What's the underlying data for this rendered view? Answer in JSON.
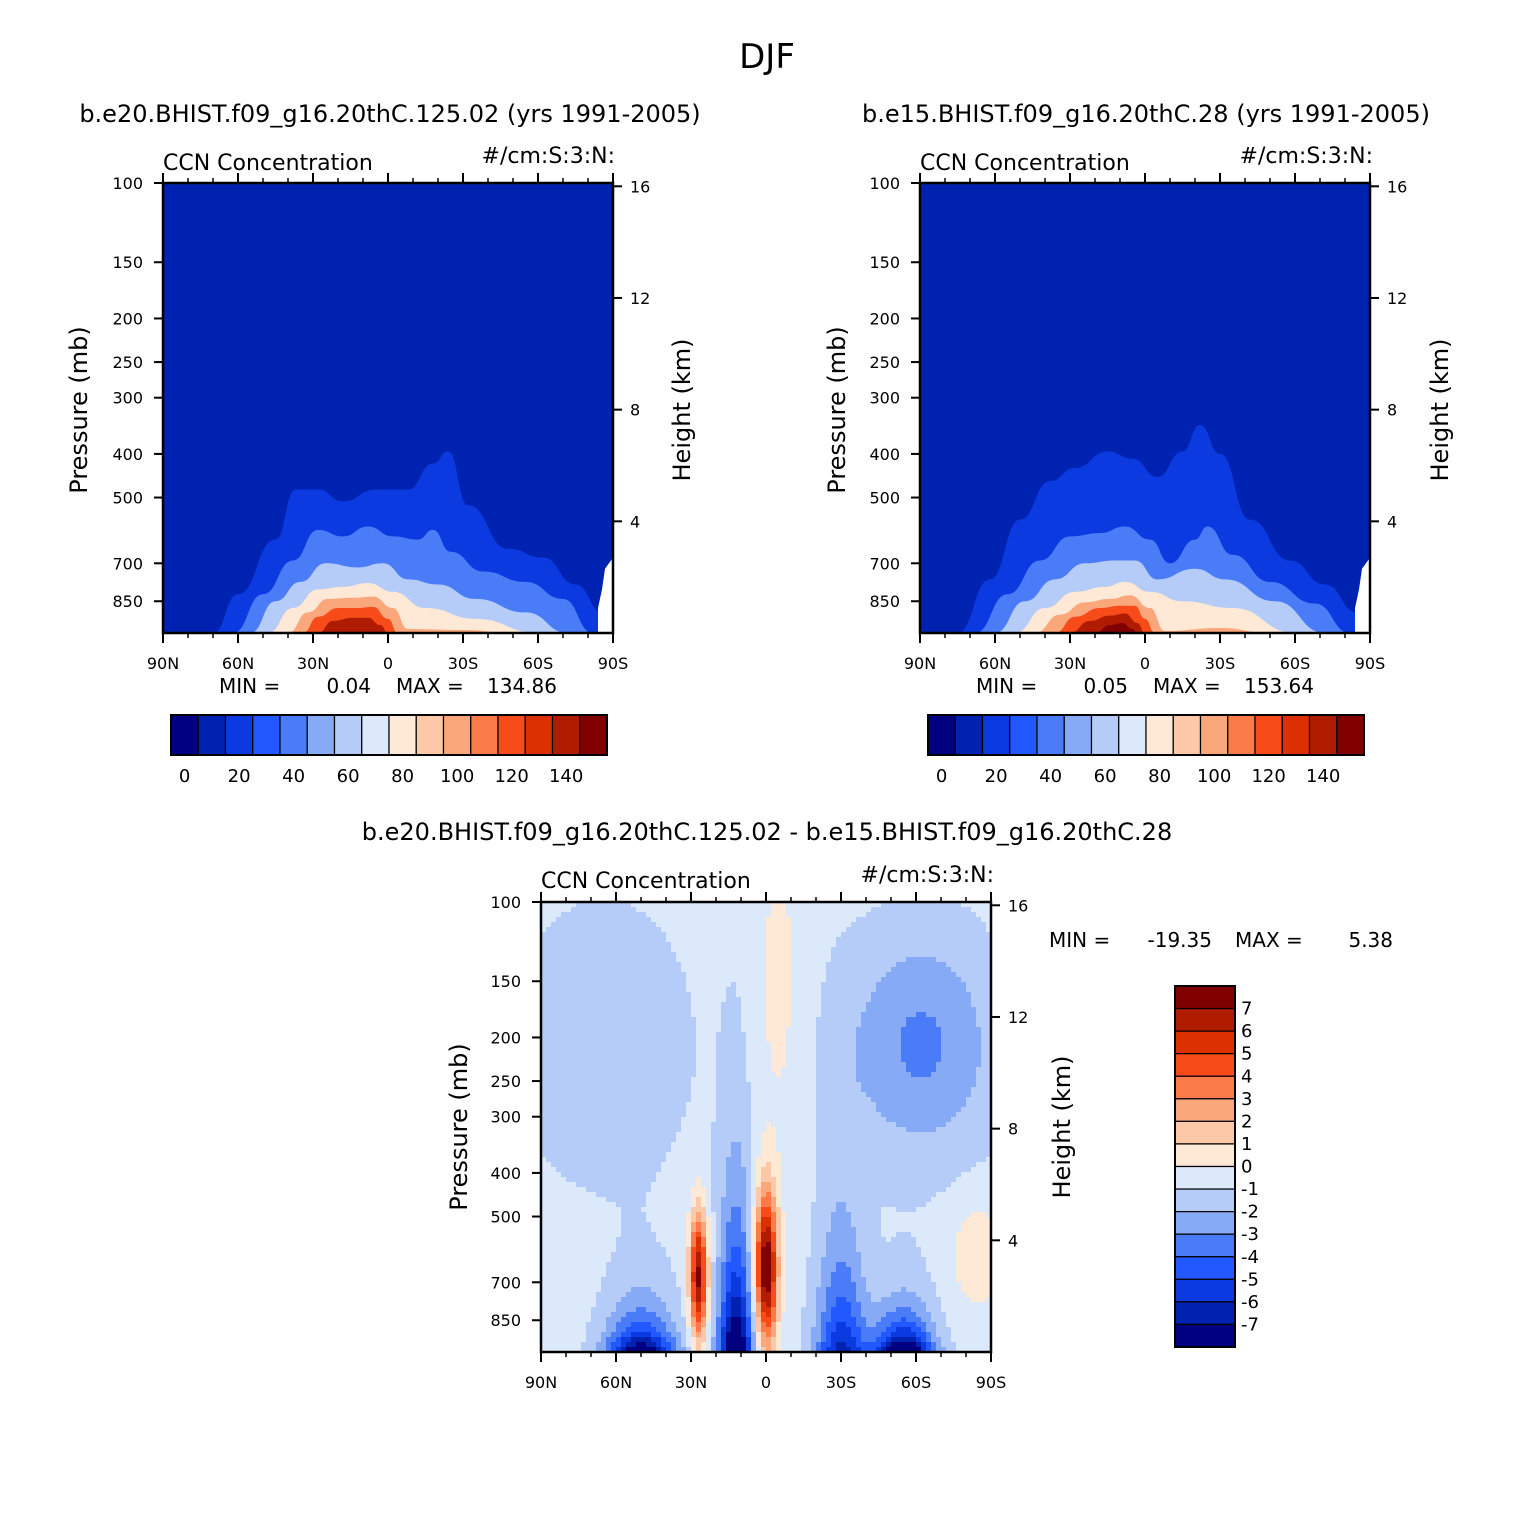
{
  "figure": {
    "title": "DJF",
    "panels": [
      {
        "id": "case",
        "subtitle": "b.e20.BHIST.f09_g16.20thC.125.02 (yrs 1991-2005)",
        "left_label": "CCN Concentration",
        "right_label": "#/cm:S:3:N:",
        "stats": {
          "min_label": "MIN =",
          "min": "0.04",
          "max_label": "MAX =",
          "max": "134.86"
        }
      },
      {
        "id": "control",
        "subtitle": "b.e15.BHIST.f09_g16.20thC.28 (yrs 1991-2005)",
        "left_label": "CCN Concentration",
        "right_label": "#/cm:S:3:N:",
        "stats": {
          "min_label": "MIN =",
          "min": "0.05",
          "max_label": "MAX =",
          "max": "153.64"
        }
      },
      {
        "id": "difference",
        "subtitle": "b.e20.BHIST.f09_g16.20thC.125.02 - b.e15.BHIST.f09_g16.20thC.28",
        "left_label": "CCN Concentration",
        "right_label": "#/cm:S:3:N:",
        "stats": {
          "min_label": "MIN =",
          "min": "-19.35",
          "max_label": "MAX =",
          "max": "5.38"
        }
      }
    ]
  },
  "chart_data": [
    {
      "type": "heatmap",
      "title": "b.e20.BHIST.f09_g16.20thC.125.02 (yrs 1991-2005)",
      "variable": "CCN Concentration",
      "units": "#/cm:S:3:N:",
      "xlabel": "",
      "ylabel": "Pressure (mb)",
      "y2label": "Height (km)",
      "x_ticks": [
        "90N",
        "60N",
        "30N",
        "0",
        "30S",
        "60S",
        "90S"
      ],
      "y_ticks": [
        100,
        150,
        200,
        250,
        300,
        400,
        500,
        700,
        850
      ],
      "y2_ticks": [
        4,
        8,
        12,
        16
      ],
      "colorbar_ticks": [
        0,
        20,
        40,
        60,
        80,
        100,
        120,
        140
      ],
      "min": 0.04,
      "max": 134.86,
      "contour_levels": [
        0,
        10,
        20,
        30,
        40,
        50,
        60,
        70,
        80,
        90,
        100,
        110,
        120,
        130,
        140
      ],
      "approx_contour_tops": [
        {
          "level": 0,
          "points": [
            [
              -70,
              1000
            ],
            [
              -60,
              820
            ],
            [
              -45,
              620
            ],
            [
              -37,
              480
            ],
            [
              -28,
              480
            ],
            [
              -18,
              510
            ],
            [
              -5,
              480
            ],
            [
              8,
              480
            ],
            [
              18,
              420
            ],
            [
              24,
              395
            ],
            [
              32,
              520
            ],
            [
              48,
              650
            ],
            [
              62,
              680
            ],
            [
              75,
              780
            ],
            [
              86,
              900
            ],
            [
              90,
              1000
            ]
          ]
        },
        {
          "level": 20,
          "points": [
            [
              -62,
              1000
            ],
            [
              -50,
              820
            ],
            [
              -38,
              690
            ],
            [
              -28,
              590
            ],
            [
              -18,
              610
            ],
            [
              -8,
              580
            ],
            [
              2,
              610
            ],
            [
              12,
              620
            ],
            [
              18,
              590
            ],
            [
              25,
              660
            ],
            [
              38,
              730
            ],
            [
              55,
              770
            ],
            [
              70,
              840
            ],
            [
              82,
              1000
            ]
          ]
        },
        {
          "level": 40,
          "points": [
            [
              -55,
              1000
            ],
            [
              -45,
              850
            ],
            [
              -35,
              770
            ],
            [
              -25,
              700
            ],
            [
              -12,
              715
            ],
            [
              -2,
              700
            ],
            [
              8,
              760
            ],
            [
              20,
              780
            ],
            [
              35,
              840
            ],
            [
              55,
              900
            ],
            [
              72,
              1000
            ]
          ]
        },
        {
          "level": 60,
          "points": [
            [
              -48,
              1000
            ],
            [
              -38,
              880
            ],
            [
              -28,
              800
            ],
            [
              -18,
              790
            ],
            [
              -8,
              775
            ],
            [
              2,
              810
            ],
            [
              15,
              880
            ],
            [
              35,
              930
            ],
            [
              60,
              1000
            ]
          ]
        },
        {
          "level": 80,
          "points": [
            [
              -40,
              1000
            ],
            [
              -32,
              900
            ],
            [
              -24,
              840
            ],
            [
              -14,
              835
            ],
            [
              -6,
              830
            ],
            [
              2,
              880
            ],
            [
              8,
              980
            ],
            [
              30,
              985
            ],
            [
              50,
              1000
            ]
          ]
        },
        {
          "level": 100,
          "points": [
            [
              -34,
              1000
            ],
            [
              -28,
              920
            ],
            [
              -20,
              880
            ],
            [
              -12,
              880
            ],
            [
              -6,
              875
            ],
            [
              0,
              930
            ],
            [
              4,
              1000
            ]
          ]
        },
        {
          "level": 120,
          "points": [
            [
              -28,
              1000
            ],
            [
              -22,
              940
            ],
            [
              -14,
              925
            ],
            [
              -8,
              925
            ],
            [
              -3,
              960
            ],
            [
              0,
              1000
            ]
          ]
        }
      ]
    },
    {
      "type": "heatmap",
      "title": "b.e15.BHIST.f09_g16.20thC.28 (yrs 1991-2005)",
      "variable": "CCN Concentration",
      "units": "#/cm:S:3:N:",
      "xlabel": "",
      "ylabel": "Pressure (mb)",
      "y2label": "Height (km)",
      "x_ticks": [
        "90N",
        "60N",
        "30N",
        "0",
        "30S",
        "60S",
        "90S"
      ],
      "y_ticks": [
        100,
        150,
        200,
        250,
        300,
        400,
        500,
        700,
        850
      ],
      "y2_ticks": [
        4,
        8,
        12,
        16
      ],
      "colorbar_ticks": [
        0,
        20,
        40,
        60,
        80,
        100,
        120,
        140
      ],
      "min": 0.05,
      "max": 153.64,
      "contour_levels": [
        0,
        10,
        20,
        30,
        40,
        50,
        60,
        70,
        80,
        90,
        100,
        110,
        120,
        130,
        140
      ],
      "approx_contour_tops": [
        {
          "level": 0,
          "points": [
            [
              -75,
              1000
            ],
            [
              -62,
              760
            ],
            [
              -50,
              560
            ],
            [
              -38,
              460
            ],
            [
              -28,
              430
            ],
            [
              -15,
              395
            ],
            [
              -5,
              410
            ],
            [
              5,
              450
            ],
            [
              15,
              395
            ],
            [
              22,
              345
            ],
            [
              30,
              400
            ],
            [
              42,
              560
            ],
            [
              58,
              690
            ],
            [
              72,
              780
            ],
            [
              85,
              900
            ],
            [
              90,
              1000
            ]
          ]
        },
        {
          "level": 20,
          "points": [
            [
              -68,
              1000
            ],
            [
              -55,
              820
            ],
            [
              -42,
              690
            ],
            [
              -30,
              610
            ],
            [
              -18,
              600
            ],
            [
              -8,
              580
            ],
            [
              2,
              620
            ],
            [
              10,
              700
            ],
            [
              20,
              620
            ],
            [
              25,
              580
            ],
            [
              35,
              670
            ],
            [
              50,
              770
            ],
            [
              68,
              860
            ],
            [
              82,
              1000
            ]
          ]
        },
        {
          "level": 40,
          "points": [
            [
              -60,
              1000
            ],
            [
              -48,
              850
            ],
            [
              -36,
              760
            ],
            [
              -24,
              700
            ],
            [
              -12,
              690
            ],
            [
              -4,
              690
            ],
            [
              5,
              760
            ],
            [
              20,
              720
            ],
            [
              32,
              760
            ],
            [
              52,
              850
            ],
            [
              72,
              1000
            ]
          ]
        },
        {
          "level": 60,
          "points": [
            [
              -52,
              1000
            ],
            [
              -40,
              880
            ],
            [
              -28,
              810
            ],
            [
              -16,
              790
            ],
            [
              -8,
              770
            ],
            [
              2,
              810
            ],
            [
              15,
              850
            ],
            [
              35,
              880
            ],
            [
              60,
              1000
            ]
          ]
        },
        {
          "level": 80,
          "points": [
            [
              -44,
              1000
            ],
            [
              -34,
              910
            ],
            [
              -24,
              855
            ],
            [
              -14,
              840
            ],
            [
              -6,
              825
            ],
            [
              2,
              880
            ],
            [
              8,
              990
            ],
            [
              30,
              975
            ],
            [
              50,
              1000
            ]
          ]
        },
        {
          "level": 100,
          "points": [
            [
              -36,
              1000
            ],
            [
              -28,
              920
            ],
            [
              -18,
              880
            ],
            [
              -10,
              870
            ],
            [
              -4,
              870
            ],
            [
              0,
              930
            ],
            [
              4,
              1000
            ]
          ]
        },
        {
          "level": 120,
          "points": [
            [
              -30,
              1000
            ],
            [
              -22,
              940
            ],
            [
              -14,
              915
            ],
            [
              -8,
              905
            ],
            [
              -3,
              950
            ],
            [
              0,
              1000
            ]
          ]
        },
        {
          "level": 140,
          "points": [
            [
              -20,
              1000
            ],
            [
              -14,
              960
            ],
            [
              -9,
              950
            ],
            [
              -5,
              980
            ],
            [
              -3,
              1000
            ]
          ]
        }
      ]
    },
    {
      "type": "heatmap",
      "title": "b.e20.BHIST.f09_g16.20thC.125.02 - b.e15.BHIST.f09_g16.20thC.28",
      "variable": "CCN Concentration",
      "units": "#/cm:S:3:N:",
      "xlabel": "",
      "ylabel": "Pressure (mb)",
      "y2label": "Height (km)",
      "x_ticks": [
        "90N",
        "60N",
        "30N",
        "0",
        "30S",
        "60S",
        "90S"
      ],
      "y_ticks": [
        100,
        150,
        200,
        250,
        300,
        400,
        500,
        700,
        850
      ],
      "y2_ticks": [
        4,
        8,
        12,
        16
      ],
      "colorbar_labels": [
        "7",
        "6",
        "5",
        "4",
        "3",
        "2",
        "1",
        "0",
        "-1",
        "-2",
        "-3",
        "-4",
        "-5",
        "-6",
        "-7"
      ],
      "min": -19.35,
      "max": 5.38,
      "contour_levels": [
        -7,
        -6,
        -5,
        -4,
        -3,
        -2,
        -1,
        0,
        1,
        2,
        3,
        4,
        5,
        6,
        7
      ]
    }
  ],
  "colormaps": {
    "absolute": [
      "#000080",
      "#0022b0",
      "#0a3ae0",
      "#2258ff",
      "#4a7cf8",
      "#86aaf6",
      "#b6ccf8",
      "#dce9fb",
      "#fee8d6",
      "#fdc8a8",
      "#fba77c",
      "#fb7b48",
      "#f74b1a",
      "#dd3000",
      "#b01c00",
      "#800000"
    ],
    "difference": [
      "#000080",
      "#0022b0",
      "#0a3ae0",
      "#2258ff",
      "#4a7cf8",
      "#86aaf6",
      "#b6ccf8",
      "#dce9fb",
      "#fee8d6",
      "#fdc8a8",
      "#fba77c",
      "#fb7b48",
      "#f74b1a",
      "#dd3000",
      "#b01c00",
      "#800000"
    ]
  }
}
